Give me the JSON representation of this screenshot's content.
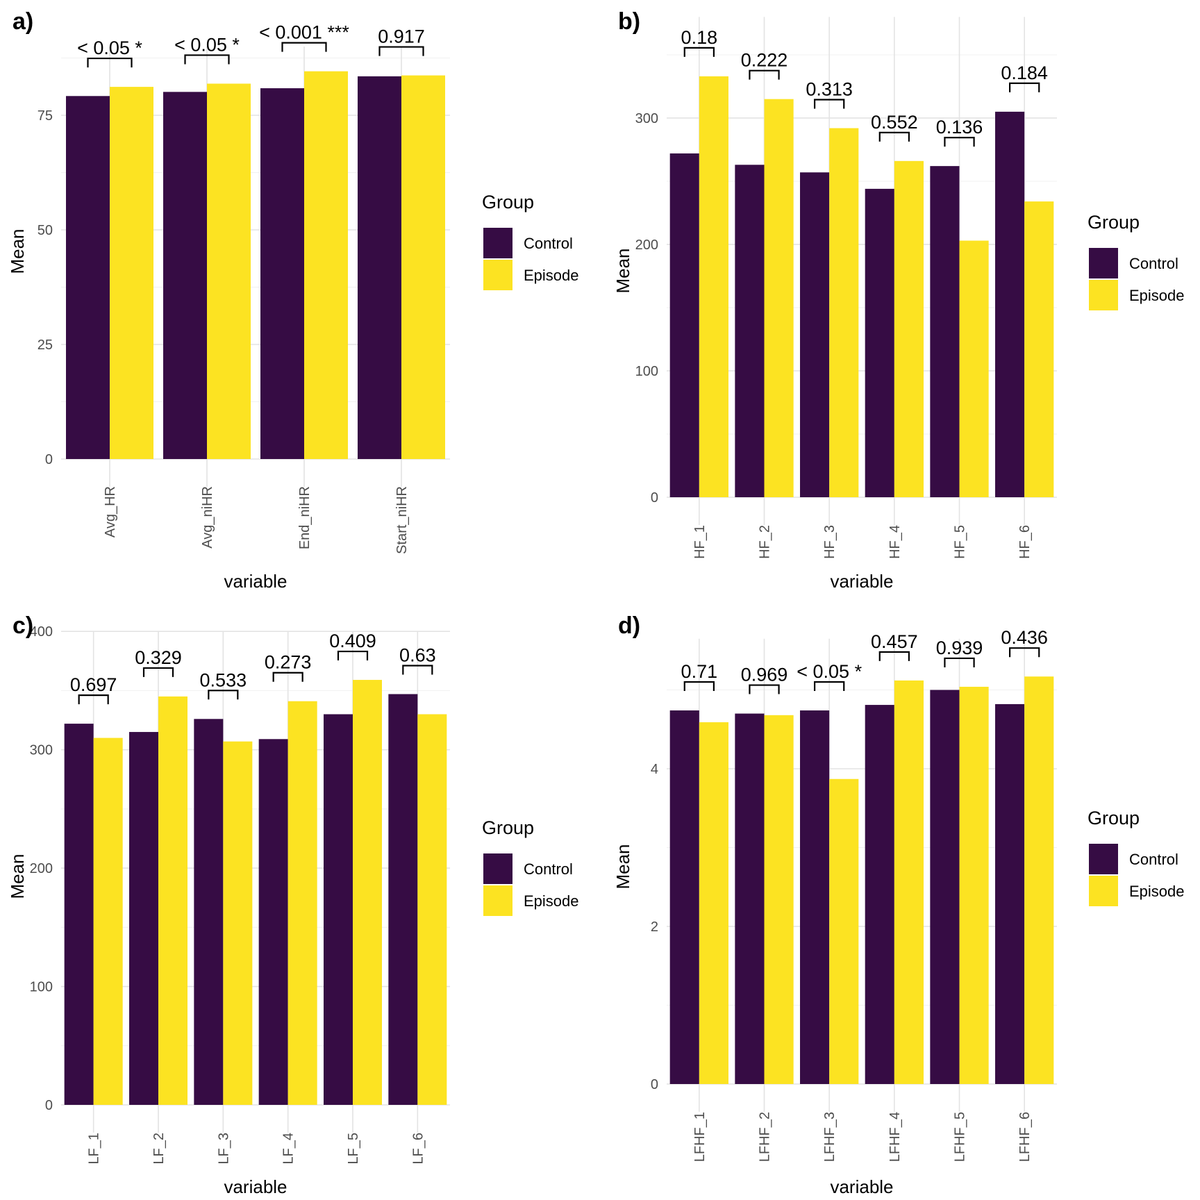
{
  "legend": {
    "title": "Group",
    "entries": [
      "Control",
      "Episode"
    ],
    "colors": [
      "#360C44",
      "#FCE322"
    ]
  },
  "chart_data": [
    {
      "panel": "a)",
      "type": "bar",
      "xlabel": "variable",
      "ylabel": "Mean",
      "ylim": [
        0,
        90
      ],
      "yticks": [
        0,
        25,
        50,
        75
      ],
      "categories": [
        "Avg_HR",
        "Avg_niHR",
        "End_niHR",
        "Start_niHR"
      ],
      "series": [
        {
          "name": "Control",
          "values": [
            79.2,
            80.1,
            80.9,
            83.5
          ]
        },
        {
          "name": "Episode",
          "values": [
            81.2,
            81.9,
            84.6,
            83.7
          ]
        }
      ],
      "annotations": [
        "< 0.05 *",
        "< 0.05 *",
        "< 0.001 ***",
        "0.917"
      ]
    },
    {
      "panel": "b)",
      "type": "bar",
      "xlabel": "variable",
      "ylabel": "Mean",
      "ylim": [
        0,
        380
      ],
      "yticks": [
        0,
        100,
        200,
        300
      ],
      "categories": [
        "HF_1",
        "HF_2",
        "HF_3",
        "HF_4",
        "HF_5",
        "HF_6"
      ],
      "series": [
        {
          "name": "Control",
          "values": [
            272,
            263,
            257,
            244,
            262,
            305
          ]
        },
        {
          "name": "Episode",
          "values": [
            333,
            315,
            292,
            266,
            203,
            234
          ]
        }
      ],
      "annotations": [
        "0.18",
        "0.222",
        "0.313",
        "0.552",
        "0.136",
        "0.184"
      ]
    },
    {
      "panel": "c)",
      "type": "bar",
      "xlabel": "variable",
      "ylabel": "Mean",
      "ylim": [
        0,
        400
      ],
      "yticks": [
        0,
        100,
        200,
        300,
        400
      ],
      "categories": [
        "LF_1",
        "LF_2",
        "LF_3",
        "LF_4",
        "LF_5",
        "LF_6"
      ],
      "series": [
        {
          "name": "Control",
          "values": [
            322,
            315,
            326,
            309,
            330,
            347
          ]
        },
        {
          "name": "Episode",
          "values": [
            310,
            345,
            307,
            341,
            359,
            330
          ]
        }
      ],
      "annotations": [
        "0.697",
        "0.329",
        "0.533",
        "0.273",
        "0.409",
        "0.63"
      ]
    },
    {
      "panel": "d)",
      "type": "bar",
      "xlabel": "variable",
      "ylabel": "Mean",
      "ylim": [
        0,
        5.65
      ],
      "yticks": [
        0,
        2,
        4
      ],
      "categories": [
        "LFHF_1",
        "LFHF_2",
        "LFHF_3",
        "LFHF_4",
        "LFHF_5",
        "LFHF_6"
      ],
      "series": [
        {
          "name": "Control",
          "values": [
            4.74,
            4.7,
            4.74,
            4.81,
            5.0,
            4.82
          ]
        },
        {
          "name": "Episode",
          "values": [
            4.59,
            4.68,
            3.87,
            5.12,
            5.04,
            5.17
          ]
        }
      ],
      "annotations": [
        "0.71",
        "0.969",
        "< 0.05 *",
        "0.457",
        "0.939",
        "0.436"
      ]
    }
  ]
}
